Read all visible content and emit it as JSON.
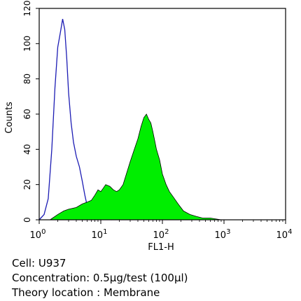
{
  "chart_data": {
    "type": "area",
    "xlabel": "FL1-H",
    "ylabel": "Counts",
    "xscale": "log",
    "xlim": [
      1,
      10000
    ],
    "ylim": [
      0,
      120
    ],
    "yticks": [
      0,
      20,
      40,
      60,
      80,
      100,
      120
    ],
    "xticks": [
      {
        "value": 1,
        "base": "10",
        "exp": "0"
      },
      {
        "value": 10,
        "base": "10",
        "exp": "1"
      },
      {
        "value": 100,
        "base": "10",
        "exp": "2"
      },
      {
        "value": 1000,
        "base": "10",
        "exp": "3"
      },
      {
        "value": 10000,
        "base": "10",
        "exp": "4"
      }
    ],
    "grid": false,
    "series": [
      {
        "style": "outline",
        "color": "#1c1cb4",
        "x": [
          1.0,
          1.2,
          1.4,
          1.6,
          1.8,
          2.0,
          2.2,
          2.4,
          2.6,
          2.8,
          3.0,
          3.3,
          3.6,
          4.0,
          4.5,
          5.0,
          5.5,
          6.0,
          7.0,
          8.0,
          10.0,
          15.0
        ],
        "y": [
          0,
          3,
          12,
          40,
          75,
          98,
          106,
          114,
          108,
          92,
          72,
          55,
          44,
          36,
          30,
          22,
          14,
          8,
          4,
          2,
          1,
          0
        ]
      },
      {
        "style": "filled",
        "color": "#00ee00",
        "x": [
          1.5,
          2.0,
          2.5,
          3.0,
          4.0,
          5.0,
          6.0,
          7.0,
          8.0,
          9.0,
          10.0,
          11.0,
          12.0,
          14.0,
          16.0,
          18.0,
          20.0,
          23.0,
          26.0,
          30.0,
          35.0,
          40.0,
          45.0,
          50.0,
          55.0,
          60.0,
          65.0,
          70.0,
          75.0,
          80.0,
          90.0,
          100.0,
          115.0,
          130.0,
          150.0,
          180.0,
          220.0,
          280.0,
          350.0,
          450.0,
          600.0,
          900.0,
          1500.0
        ],
        "y": [
          0,
          3,
          5,
          6,
          7,
          9,
          10,
          11,
          14,
          17,
          16,
          18,
          20,
          19,
          17,
          16,
          17,
          20,
          26,
          33,
          40,
          46,
          53,
          58,
          60,
          57,
          55,
          50,
          45,
          40,
          34,
          26,
          20,
          16,
          13,
          9,
          5,
          3,
          2,
          1,
          1,
          0,
          0
        ]
      }
    ]
  },
  "captions": [
    "Cell: U937",
    "Concentration: 0.5µg/test (100µl)",
    "Theory location : Membrane"
  ]
}
